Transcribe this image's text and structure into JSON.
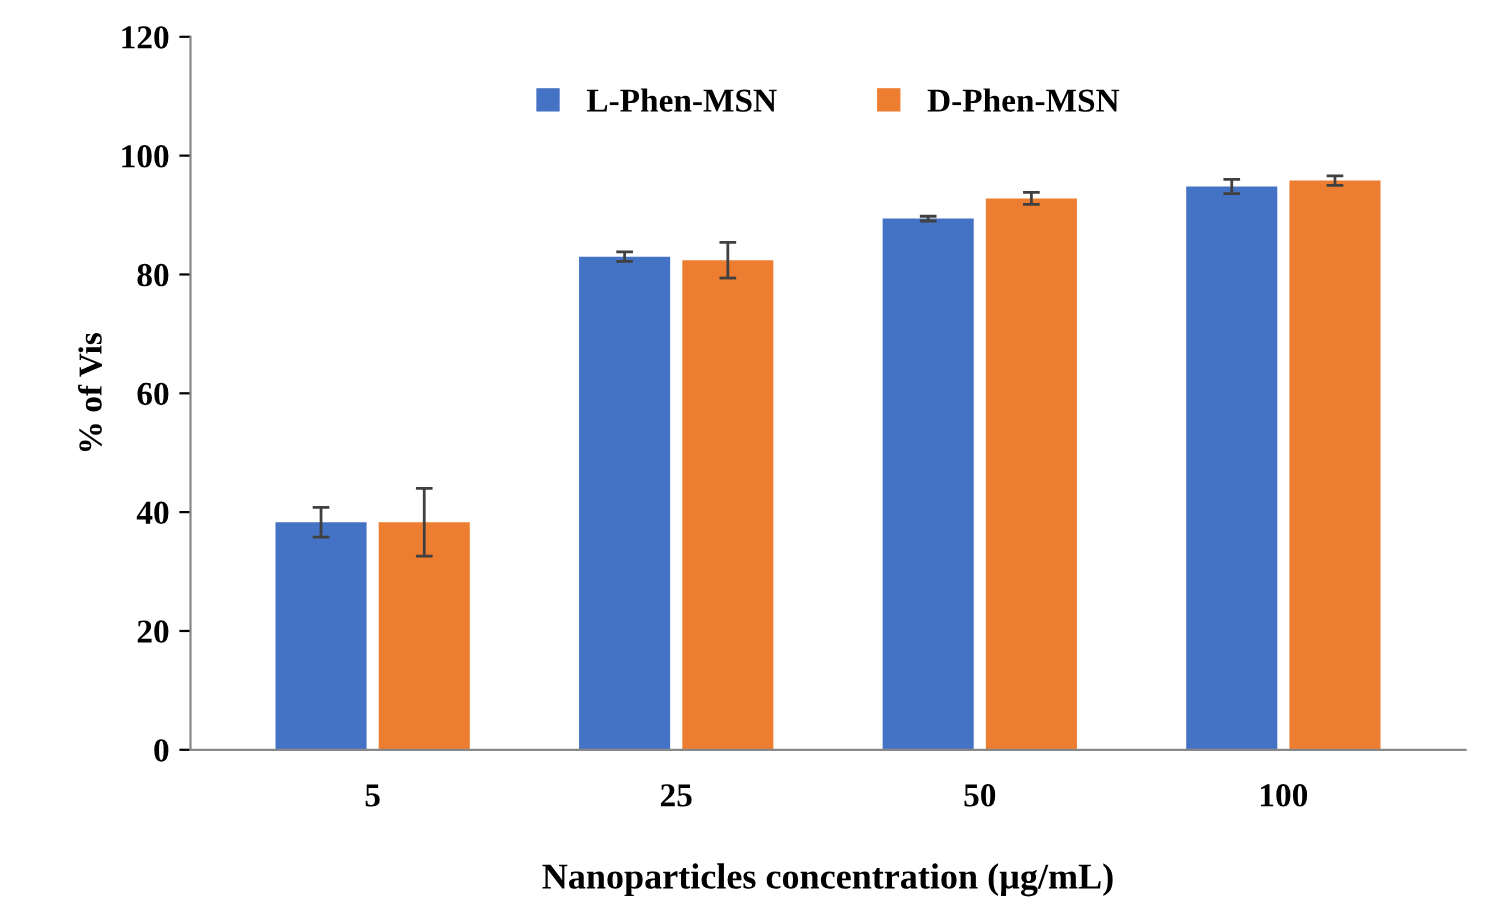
{
  "chart_data": {
    "type": "bar",
    "xlabel": "Nanoparticles concentration (µg/mL)",
    "ylabel": "% of Vis",
    "categories": [
      "5",
      "25",
      "50",
      "100"
    ],
    "series": [
      {
        "name": "L-Phen-MSN",
        "color": "#4472c4",
        "values": [
          38.3,
          83.0,
          89.4,
          94.8
        ],
        "errors": [
          2.5,
          0.8,
          0.4,
          1.2
        ]
      },
      {
        "name": "D-Phen-MSN",
        "color": "#ed7d31",
        "values": [
          38.3,
          82.4,
          92.8,
          95.8
        ],
        "errors": [
          5.7,
          3,
          1,
          0.8
        ]
      }
    ],
    "ylim": [
      0,
      120
    ],
    "yticks": [
      0,
      20,
      40,
      60,
      80,
      100,
      120
    ],
    "grid": false,
    "legend": "top"
  }
}
